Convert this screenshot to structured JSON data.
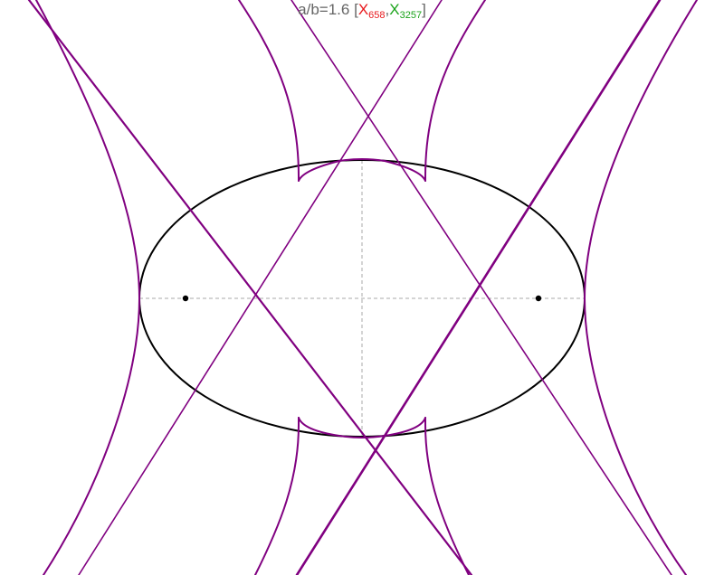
{
  "title": {
    "prefix": "a/b=1.6 [",
    "p1": "X",
    "p1_sub": "658",
    "sep": ",",
    "p2": "X",
    "p2_sub": "3257",
    "suffix": "]"
  },
  "colors": {
    "ellipse": "#000000",
    "axes": "#aaaaaa",
    "curves": "#800080",
    "title_text": "#666666",
    "x658": "#e8191d",
    "x3257": "#1aa31a"
  }
}
